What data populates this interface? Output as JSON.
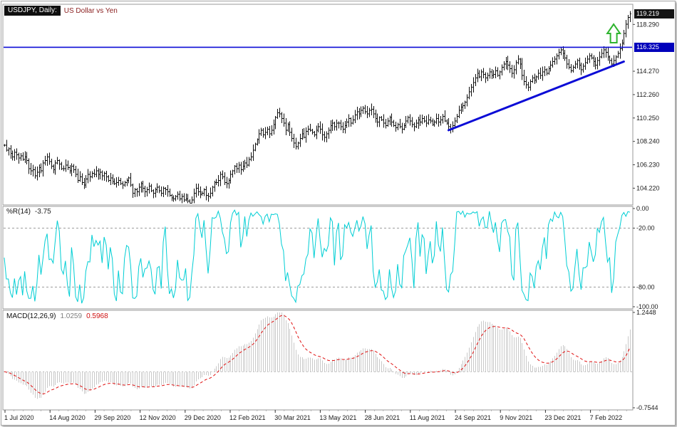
{
  "colors": {
    "bars": "#111111",
    "wpr_line": "#00ced4",
    "macd_hist": "#c9c9c9",
    "macd_signal": "#e01010",
    "trend_blue": "#0b0bd6",
    "panel_border": "#9a9a9a",
    "level_dash": "#999999",
    "arrow_green": "#2fb42f",
    "tag_black_bg": "#141414",
    "tag_blue_bg": "#0000bb"
  },
  "price_panel": {
    "header": "USDJPY, Daily:",
    "description": "US Dollar vs Yen"
  },
  "wpr_panel": {
    "header": "%R(14)"
  },
  "macd_panel": {
    "header": "MACD(12,26,9)"
  },
  "chart_data": [
    {
      "type": "bar",
      "symbol": "USDJPY",
      "timeframe": "Daily",
      "title": "US Dollar vs Yen",
      "ylim": [
        102.9,
        119.9
      ],
      "y_ticks": [
        "118.290",
        "114.270",
        "112.260",
        "110.250",
        "108.240",
        "106.230",
        "104.220"
      ],
      "current_price": "119.219",
      "horizontal_line": "116.325",
      "trendline": {
        "start_index": 218,
        "start_price": 109.2,
        "end_index": 304,
        "end_price": 115.1
      },
      "arrow_index": 299,
      "x_labels": [
        "1 Jul 2020",
        "14 Aug 2020",
        "29 Sep 2020",
        "12 Nov 2020",
        "29 Dec 2020",
        "12 Feb 2021",
        "30 Mar 2021",
        "13 May 2021",
        "28 Jun 2021",
        "11 Aug 2021",
        "24 Sep 2021",
        "9 Nov 2021",
        "23 Dec 2021",
        "7 Feb 2022"
      ],
      "close": [
        107.9,
        107.5,
        107.6,
        107.2,
        106.9,
        107.3,
        107.1,
        106.8,
        107.0,
        106.7,
        106.9,
        106.6,
        105.9,
        105.7,
        105.8,
        105.3,
        105.6,
        106.0,
        105.7,
        106.4,
        106.6,
        106.9,
        106.5,
        106.1,
        105.8,
        106.4,
        106.6,
        106.3,
        105.9,
        105.9,
        106.2,
        106.0,
        105.7,
        106.1,
        105.8,
        105.4,
        104.9,
        105.2,
        104.7,
        104.5,
        105.0,
        105.4,
        105.2,
        105.5,
        105.4,
        105.7,
        105.4,
        105.6,
        105.3,
        105.5,
        105.2,
        104.9,
        105.1,
        104.8,
        104.6,
        104.7,
        104.9,
        104.6,
        104.5,
        104.7,
        104.9,
        105.1,
        104.5,
        103.8,
        104.1,
        103.9,
        104.3,
        104.6,
        104.2,
        103.9,
        104.1,
        104.4,
        104.0,
        103.8,
        104.1,
        104.3,
        104.0,
        103.8,
        104.2,
        104.1,
        103.9,
        103.6,
        103.4,
        103.3,
        103.5,
        103.7,
        103.3,
        103.5,
        103.2,
        103.3,
        103.1,
        102.9,
        103.2,
        103.8,
        104.2,
        103.9,
        103.7,
        103.8,
        104.1,
        103.6,
        103.5,
        103.8,
        104.3,
        104.7,
        104.7,
        104.9,
        105.4,
        105.2,
        104.7,
        104.6,
        104.9,
        105.4,
        105.7,
        106.1,
        105.9,
        106.2,
        105.8,
        106.1,
        106.4,
        106.2,
        106.7,
        106.9,
        107.5,
        108.0,
        108.4,
        108.9,
        109.2,
        108.8,
        109.0,
        109.3,
        108.9,
        109.2,
        109.7,
        110.3,
        110.7,
        110.6,
        110.2,
        109.8,
        109.2,
        109.7,
        109.0,
        108.5,
        108.1,
        107.8,
        108.1,
        108.5,
        108.9,
        108.6,
        109.1,
        109.3,
        109.2,
        109.0,
        108.8,
        109.2,
        109.5,
        109.3,
        108.8,
        108.6,
        108.9,
        109.2,
        109.6,
        109.8,
        109.5,
        109.8,
        109.8,
        109.5,
        109.3,
        109.6,
        109.9,
        110.2,
        109.8,
        110.1,
        110.5,
        110.8,
        110.6,
        110.9,
        111.1,
        110.8,
        110.6,
        110.9,
        111.0,
        110.6,
        110.2,
        109.9,
        110.3,
        110.1,
        109.8,
        109.6,
        110.0,
        110.3,
        109.9,
        109.6,
        109.4,
        109.7,
        109.5,
        109.3,
        109.6,
        110.0,
        110.3,
        110.0,
        109.7,
        109.5,
        109.8,
        110.1,
        109.9,
        110.2,
        110.0,
        109.8,
        110.1,
        110.0,
        109.7,
        109.9,
        110.2,
        109.9,
        110.1,
        110.4,
        110.0,
        109.8,
        109.5,
        109.3,
        109.6,
        110.0,
        110.4,
        110.9,
        111.2,
        111.3,
        111.6,
        112.0,
        112.5,
        112.9,
        113.3,
        113.7,
        114.1,
        113.8,
        114.2,
        114.0,
        113.7,
        113.9,
        114.2,
        113.9,
        114.0,
        114.3,
        113.9,
        114.2,
        114.6,
        114.9,
        115.1,
        114.8,
        114.5,
        114.1,
        114.4,
        115.0,
        115.3,
        114.9,
        113.9,
        113.4,
        113.1,
        112.9,
        113.4,
        113.7,
        113.5,
        113.8,
        114.1,
        113.9,
        114.2,
        114.4,
        114.1,
        114.5,
        114.8,
        115.1,
        115.3,
        115.6,
        115.9,
        116.1,
        115.8,
        115.4,
        114.9,
        114.6,
        114.3,
        114.6,
        114.9,
        115.2,
        114.8,
        114.4,
        114.7,
        115.0,
        115.3,
        115.6,
        115.4,
        115.1,
        114.8,
        115.2,
        115.5,
        115.8,
        116.1,
        115.9,
        115.5,
        115.2,
        114.9,
        115.2,
        115.5,
        115.8,
        116.2,
        116.7,
        117.5,
        118.3,
        118.9,
        119.2
      ]
    },
    {
      "type": "line",
      "name": "Williams %R",
      "period": 14,
      "value": "-3.75",
      "ylim": [
        -100,
        0
      ],
      "y_ticks": [
        "0.00",
        "-20.00",
        "-80.00",
        "-100.00"
      ],
      "dashed_levels": [
        -20,
        -80
      ]
    },
    {
      "type": "macd",
      "name": "MACD",
      "params": [
        12,
        26,
        9
      ],
      "main_value": "1.0259",
      "signal_value": "0.5968",
      "ylim": [
        -0.7544,
        1.2448
      ],
      "y_ticks": [
        "1.2448",
        "-0.7544"
      ]
    }
  ]
}
